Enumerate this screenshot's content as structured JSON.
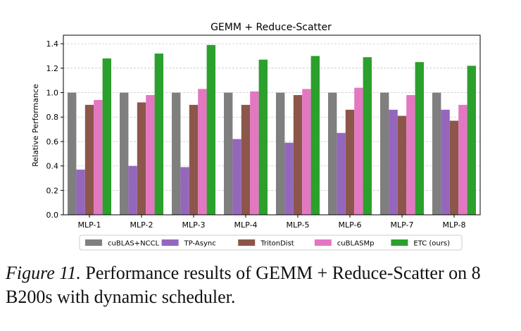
{
  "caption": {
    "label": "Figure 11.",
    "text": "Performance results of GEMM + Reduce-Scatter on 8 B200s with dynamic scheduler."
  },
  "chart_data": {
    "type": "bar",
    "title": "GEMM + Reduce-Scatter",
    "xlabel": "",
    "ylabel": "Relative Performance",
    "categories": [
      "MLP-1",
      "MLP-2",
      "MLP-3",
      "MLP-4",
      "MLP-5",
      "MLP-6",
      "MLP-7",
      "MLP-8"
    ],
    "ylim": [
      0,
      1.47
    ],
    "yticks": [
      "0.0",
      "0.2",
      "0.4",
      "0.6",
      "0.8",
      "1.0",
      "1.2",
      "1.4"
    ],
    "grid": "horizontal dashed",
    "legend_position": "bottom",
    "series": [
      {
        "name": "cuBLAS+NCCL",
        "color": "#7f7f7f",
        "values": [
          1.0,
          1.0,
          1.0,
          1.0,
          1.0,
          1.0,
          1.0,
          1.0
        ]
      },
      {
        "name": "TP-Async",
        "color": "#9467bd",
        "values": [
          0.37,
          0.4,
          0.39,
          0.62,
          0.59,
          0.67,
          0.86,
          0.86
        ]
      },
      {
        "name": "TritonDist",
        "color": "#8c564b",
        "values": [
          0.9,
          0.92,
          0.9,
          0.9,
          0.98,
          0.86,
          0.81,
          0.77
        ]
      },
      {
        "name": "cuBLASMp",
        "color": "#e377c2",
        "values": [
          0.94,
          0.98,
          1.03,
          1.01,
          1.03,
          1.04,
          0.98,
          0.9
        ]
      },
      {
        "name": "ETC (ours)",
        "color": "#2ca02c",
        "values": [
          1.28,
          1.32,
          1.39,
          1.27,
          1.3,
          1.29,
          1.25,
          1.22
        ]
      }
    ]
  }
}
